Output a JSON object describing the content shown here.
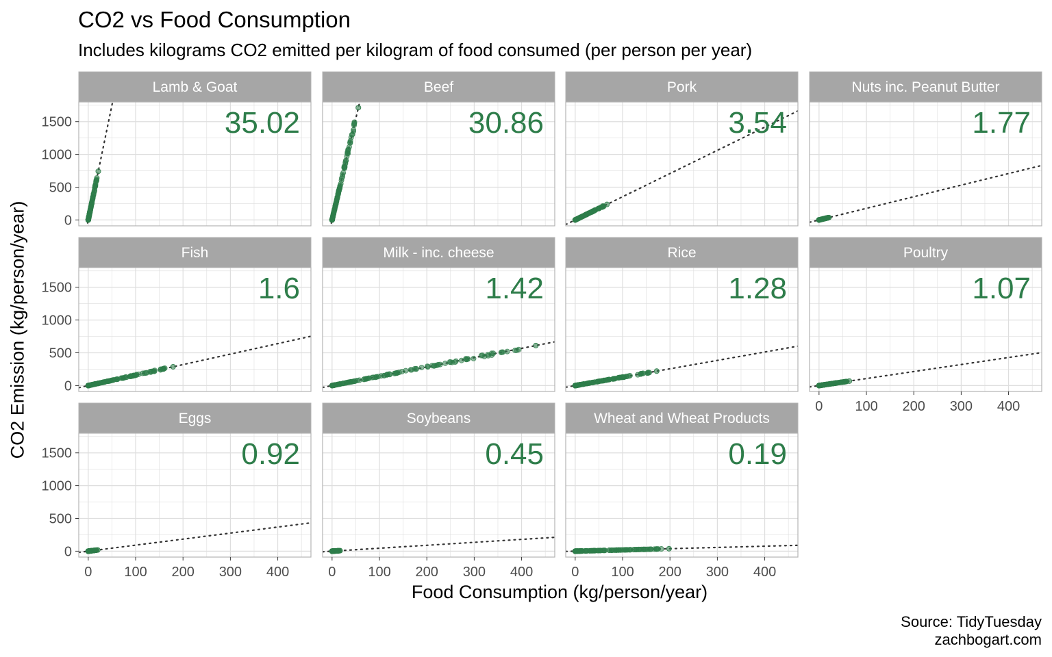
{
  "title": "CO2 vs Food Consumption",
  "subtitle": "Includes kilograms CO2 emitted per kilogram of food consumed (per person per year)",
  "caption_line1": "Source: TidyTuesday",
  "caption_line2": "zachbogart.com",
  "colors": {
    "point": "#2e7d4a",
    "strip": "#a6a6a6",
    "grid": "#dedede",
    "panel_border": "#b3b3b3",
    "fit_line": "#333333"
  },
  "chart_data": {
    "type": "scatter",
    "xlabel": "Food Consumption (kg/person/year)",
    "ylabel": "CO2 Emission (kg/person/year)",
    "xlim": [
      -20,
      470
    ],
    "ylim": [
      -90,
      1800
    ],
    "x_ticks": [
      0,
      100,
      200,
      300,
      400
    ],
    "y_ticks": [
      0,
      500,
      1000,
      1500
    ],
    "panels": [
      {
        "name": "Lamb & Goat",
        "coef": "35.02",
        "slope": 35.02,
        "xmax": 21.2
      },
      {
        "name": "Beef",
        "coef": "30.86",
        "slope": 30.86,
        "xmax": 55.5
      },
      {
        "name": "Pork",
        "coef": "3.54",
        "slope": 3.54,
        "xmax": 67
      },
      {
        "name": "Nuts inc. Peanut Butter",
        "coef": "1.77",
        "slope": 1.77,
        "xmax": 21
      },
      {
        "name": "Fish",
        "coef": "1.6",
        "slope": 1.6,
        "xmax": 179
      },
      {
        "name": "Milk - inc. cheese",
        "coef": "1.42",
        "slope": 1.42,
        "xmax": 430
      },
      {
        "name": "Rice",
        "coef": "1.28",
        "slope": 1.28,
        "xmax": 172
      },
      {
        "name": "Poultry",
        "coef": "1.07",
        "slope": 1.07,
        "xmax": 64
      },
      {
        "name": "Eggs",
        "coef": "0.92",
        "slope": 0.92,
        "xmax": 20
      },
      {
        "name": "Soybeans",
        "coef": "0.45",
        "slope": 0.45,
        "xmax": 17
      },
      {
        "name": "Wheat and Wheat Products",
        "coef": "0.19",
        "slope": 0.19,
        "xmax": 198
      }
    ]
  }
}
